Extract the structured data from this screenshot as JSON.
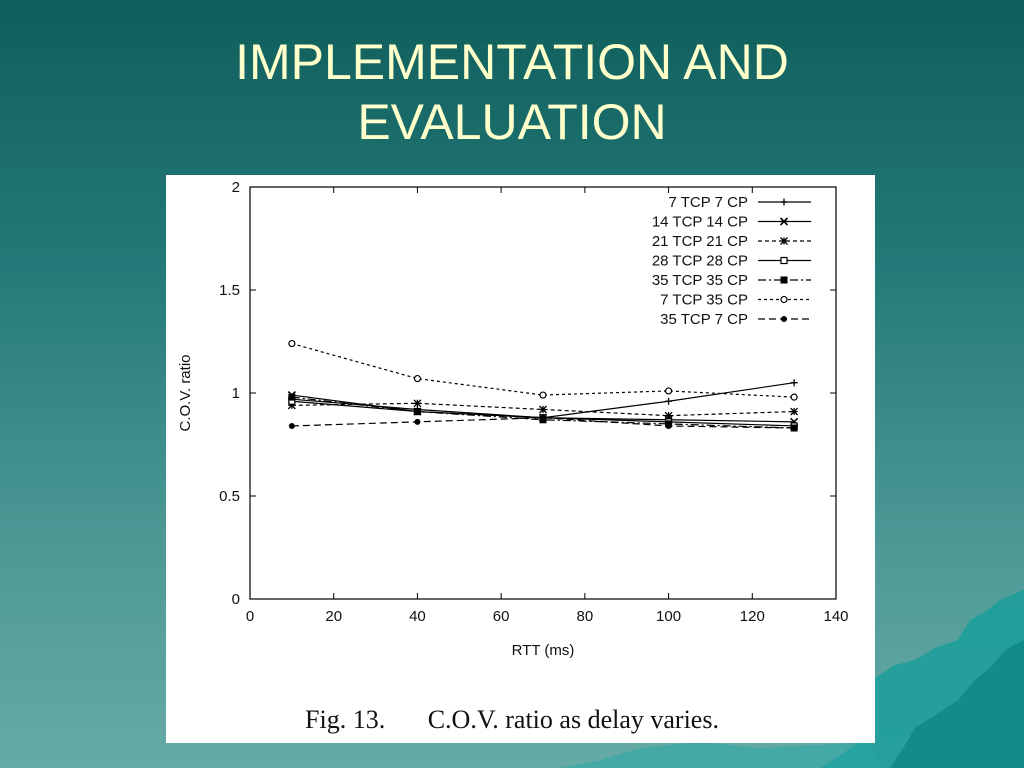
{
  "slide": {
    "title_line1": "IMPLEMENTATION AND",
    "title_line2": "EVALUATION"
  },
  "caption": {
    "fig_num": "Fig. 13.",
    "text": "C.O.V. ratio as delay varies."
  },
  "chart_data": {
    "type": "line",
    "title": "",
    "xlabel": "RTT (ms)",
    "ylabel": "C.O.V. ratio",
    "xlim": [
      0,
      140
    ],
    "ylim": [
      0,
      2
    ],
    "x_ticks": [
      0,
      20,
      40,
      60,
      80,
      100,
      120,
      140
    ],
    "y_ticks": [
      0,
      0.5,
      1,
      1.5,
      2
    ],
    "y_tick_labels": [
      "0",
      "0.5",
      "1",
      "1.5",
      "2"
    ],
    "grid": false,
    "legend_position": "top-right",
    "x": [
      10,
      40,
      70,
      100,
      130
    ],
    "series": [
      {
        "name": "7 TCP 7 CP",
        "values": [
          0.97,
          0.92,
          0.88,
          0.96,
          1.05
        ],
        "marker": "plus",
        "dash": "none"
      },
      {
        "name": "14 TCP 14 CP",
        "values": [
          0.99,
          0.91,
          0.88,
          0.87,
          0.86
        ],
        "marker": "cross",
        "dash": "none"
      },
      {
        "name": "21 TCP 21 CP",
        "values": [
          0.94,
          0.95,
          0.92,
          0.89,
          0.91
        ],
        "marker": "star",
        "dash": "4,3"
      },
      {
        "name": "28 TCP 28 CP",
        "values": [
          0.96,
          0.91,
          0.88,
          0.86,
          0.84
        ],
        "marker": "square-open",
        "dash": "none"
      },
      {
        "name": "35 TCP 35 CP",
        "values": [
          0.98,
          0.91,
          0.87,
          0.85,
          0.83
        ],
        "marker": "square-filled",
        "dash": "8,3,2,3"
      },
      {
        "name": "7 TCP 35 CP",
        "values": [
          1.24,
          1.07,
          0.99,
          1.01,
          0.98
        ],
        "marker": "circle-open",
        "dash": "3,3"
      },
      {
        "name": "35 TCP 7 CP",
        "values": [
          0.84,
          0.86,
          0.88,
          0.84,
          0.83
        ],
        "marker": "circle-filled",
        "dash": "7,4"
      }
    ]
  }
}
